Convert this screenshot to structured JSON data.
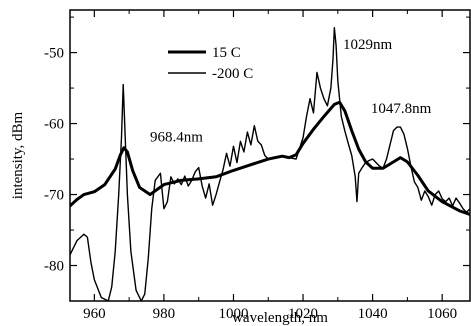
{
  "chart_data": {
    "type": "line",
    "title": "",
    "xlabel": "wavelength, nm",
    "ylabel": "intensity, dBm",
    "xlim": [
      953,
      1068
    ],
    "ylim": [
      -85,
      -44
    ],
    "x_ticks": [
      960,
      980,
      1000,
      1020,
      1040,
      1060
    ],
    "y_ticks": [
      -50,
      -60,
      -70,
      -80
    ],
    "grid": false,
    "legend_position": "top-center",
    "series": [
      {
        "name": "15 C",
        "line_width": "thick",
        "color": "#000000",
        "points": [
          [
            953,
            -71.6
          ],
          [
            955,
            -70.7
          ],
          [
            957,
            -70.0
          ],
          [
            960,
            -69.6
          ],
          [
            963,
            -68.6
          ],
          [
            966,
            -66.4
          ],
          [
            967.5,
            -64.4
          ],
          [
            968.5,
            -63.4
          ],
          [
            969.5,
            -64.0
          ],
          [
            971,
            -66.6
          ],
          [
            973,
            -69.0
          ],
          [
            976,
            -70.0
          ],
          [
            980,
            -68.6
          ],
          [
            985,
            -68.0
          ],
          [
            990,
            -67.8
          ],
          [
            995,
            -67.5
          ],
          [
            1000,
            -66.6
          ],
          [
            1005,
            -65.8
          ],
          [
            1010,
            -65.0
          ],
          [
            1014,
            -64.6
          ],
          [
            1016,
            -64.8
          ],
          [
            1018,
            -64.4
          ],
          [
            1020,
            -62.8
          ],
          [
            1023,
            -60.8
          ],
          [
            1026,
            -59.0
          ],
          [
            1029,
            -57.3
          ],
          [
            1030.5,
            -57.0
          ],
          [
            1032,
            -58.2
          ],
          [
            1034,
            -61.0
          ],
          [
            1036,
            -63.6
          ],
          [
            1038,
            -65.4
          ],
          [
            1040,
            -66.3
          ],
          [
            1043,
            -66.3
          ],
          [
            1046,
            -65.4
          ],
          [
            1048,
            -64.8
          ],
          [
            1050,
            -65.4
          ],
          [
            1053,
            -67.3
          ],
          [
            1056,
            -69.5
          ],
          [
            1060,
            -71.0
          ],
          [
            1065,
            -72.3
          ],
          [
            1068,
            -72.8
          ]
        ]
      },
      {
        "name": "-200 C",
        "line_width": "thin",
        "color": "#000000",
        "points": [
          [
            953,
            -78.5
          ],
          [
            955,
            -76.5
          ],
          [
            957,
            -75.6
          ],
          [
            958,
            -76.0
          ],
          [
            959,
            -79.5
          ],
          [
            960,
            -82.0
          ],
          [
            962,
            -84.5
          ],
          [
            964,
            -85.0
          ],
          [
            965,
            -83.0
          ],
          [
            966,
            -78.0
          ],
          [
            967,
            -70.0
          ],
          [
            967.8,
            -62.0
          ],
          [
            968.3,
            -54.5
          ],
          [
            968.8,
            -61.0
          ],
          [
            969.5,
            -70.0
          ],
          [
            970.5,
            -78.0
          ],
          [
            972,
            -83.5
          ],
          [
            973.5,
            -85.0
          ],
          [
            974.5,
            -84.0
          ],
          [
            975.5,
            -79.0
          ],
          [
            976.5,
            -72.0
          ],
          [
            977.5,
            -68.0
          ],
          [
            979,
            -67.0
          ],
          [
            980,
            -72.0
          ],
          [
            981,
            -71.0
          ],
          [
            982,
            -67.5
          ],
          [
            983,
            -68.5
          ],
          [
            984,
            -67.8
          ],
          [
            985,
            -68.6
          ],
          [
            986,
            -67.4
          ],
          [
            987,
            -68.8
          ],
          [
            988,
            -68.0
          ],
          [
            989,
            -66.8
          ],
          [
            990,
            -66.2
          ],
          [
            991,
            -68.8
          ],
          [
            992,
            -70.5
          ],
          [
            993,
            -68.5
          ],
          [
            994,
            -71.5
          ],
          [
            995,
            -70.0
          ],
          [
            996,
            -68.2
          ],
          [
            997,
            -66.5
          ],
          [
            998,
            -64.2
          ],
          [
            999,
            -66.0
          ],
          [
            1000,
            -63.2
          ],
          [
            1001,
            -65.5
          ],
          [
            1002,
            -62.5
          ],
          [
            1003,
            -64.0
          ],
          [
            1004,
            -61.2
          ],
          [
            1005,
            -63.0
          ],
          [
            1006,
            -60.3
          ],
          [
            1007,
            -62.5
          ],
          [
            1008,
            -63.0
          ],
          [
            1009,
            -64.5
          ],
          [
            1010,
            -65.0
          ],
          [
            1012,
            -64.7
          ],
          [
            1014,
            -64.5
          ],
          [
            1016,
            -64.8
          ],
          [
            1018,
            -65.0
          ],
          [
            1019,
            -63.5
          ],
          [
            1020,
            -62.0
          ],
          [
            1021,
            -59.0
          ],
          [
            1022,
            -56.5
          ],
          [
            1023,
            -58.5
          ],
          [
            1024,
            -52.8
          ],
          [
            1025,
            -55.0
          ],
          [
            1026,
            -56.5
          ],
          [
            1027,
            -57.5
          ],
          [
            1028,
            -55.0
          ],
          [
            1028.6,
            -51.0
          ],
          [
            1029,
            -46.5
          ],
          [
            1029.5,
            -49.0
          ],
          [
            1030,
            -54.0
          ],
          [
            1031,
            -59.0
          ],
          [
            1032,
            -61.0
          ],
          [
            1033,
            -62.8
          ],
          [
            1034,
            -64.5
          ],
          [
            1035,
            -67.5
          ],
          [
            1035.5,
            -71.0
          ],
          [
            1036,
            -67.0
          ],
          [
            1037,
            -66.2
          ],
          [
            1038,
            -65.5
          ],
          [
            1039,
            -65.2
          ],
          [
            1040,
            -65.0
          ],
          [
            1041,
            -65.5
          ],
          [
            1042,
            -66.0
          ],
          [
            1043,
            -66.3
          ],
          [
            1044,
            -65.0
          ],
          [
            1045,
            -63.0
          ],
          [
            1046,
            -61.0
          ],
          [
            1047,
            -60.5
          ],
          [
            1048,
            -60.5
          ],
          [
            1049,
            -61.5
          ],
          [
            1050,
            -63.5
          ],
          [
            1051,
            -66.0
          ],
          [
            1052,
            -68.2
          ],
          [
            1053,
            -69.0
          ],
          [
            1054,
            -70.8
          ],
          [
            1055,
            -69.5
          ],
          [
            1056,
            -70.3
          ],
          [
            1057,
            -71.5
          ],
          [
            1058,
            -70.0
          ],
          [
            1059,
            -69.5
          ],
          [
            1060,
            -70.6
          ],
          [
            1061,
            -71.0
          ],
          [
            1062,
            -70.5
          ],
          [
            1063,
            -71.6
          ],
          [
            1064,
            -70.5
          ],
          [
            1065,
            -71.2
          ],
          [
            1066,
            -72.0
          ],
          [
            1067,
            -72.5
          ],
          [
            1068,
            -72.0
          ]
        ]
      }
    ],
    "annotations": [
      {
        "text": "968.4nm",
        "x": 976,
        "y": -62.5,
        "anchor": "start"
      },
      {
        "text": "1029nm",
        "x": 1031.5,
        "y": -49.5,
        "anchor": "start"
      },
      {
        "text": "1047.8nm",
        "x": 1039.5,
        "y": -58.5,
        "anchor": "start"
      }
    ]
  }
}
